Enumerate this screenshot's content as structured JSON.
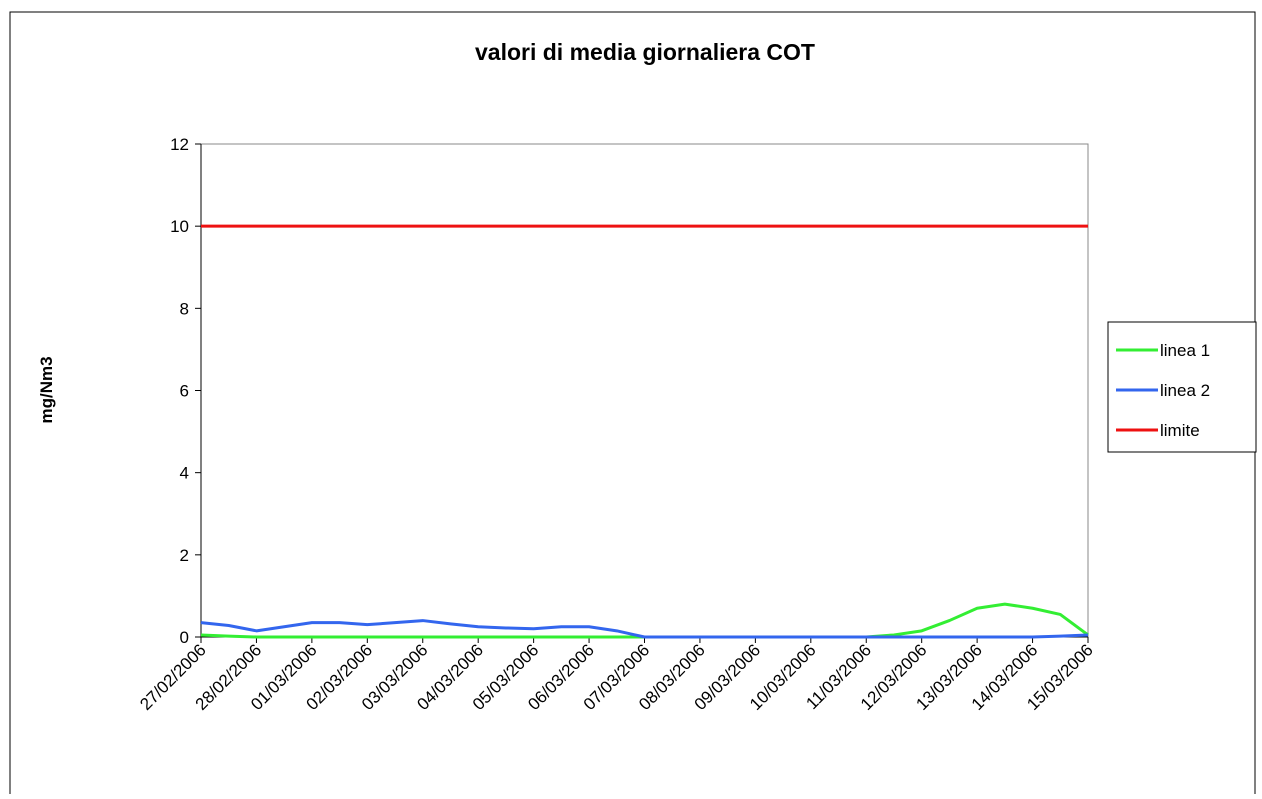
{
  "chart_data": {
    "type": "line",
    "title": "valori di media giornaliera  COT",
    "y_label": "mg/Nm3",
    "categories": [
      "27/02/2006",
      null,
      "28/02/2006",
      null,
      "01/03/2006",
      null,
      "02/03/2006",
      null,
      "03/03/2006",
      null,
      "04/03/2006",
      null,
      "05/03/2006",
      null,
      "06/03/2006",
      null,
      "07/03/2006",
      null,
      "08/03/2006",
      null,
      "09/03/2006",
      null,
      "10/03/2006",
      null,
      "11/03/2006",
      null,
      "12/03/2006",
      null,
      "13/03/2006",
      null,
      "14/03/2006",
      null,
      "15/03/2006"
    ],
    "series": [
      {
        "name": "linea 1",
        "color": "#33ee33",
        "values": [
          0.05,
          0.02,
          0,
          0,
          0,
          0,
          0,
          0,
          0,
          0,
          0,
          0,
          0,
          0,
          0,
          0,
          0,
          0,
          0,
          0,
          0,
          0,
          0,
          0,
          0,
          0.05,
          0.15,
          0.4,
          0.7,
          0.8,
          0.7,
          0.55,
          0.05
        ]
      },
      {
        "name": "linea 2",
        "color": "#3366ee",
        "values": [
          0.35,
          0.28,
          0.15,
          0.25,
          0.35,
          0.35,
          0.3,
          0.35,
          0.4,
          0.32,
          0.25,
          0.22,
          0.2,
          0.25,
          0.25,
          0.15,
          0,
          0,
          0,
          0,
          0,
          0,
          0,
          0,
          0,
          0,
          0,
          0,
          0,
          0,
          0,
          0.02,
          0.05
        ]
      },
      {
        "name": "limite",
        "color": "#ee1111",
        "values": [
          10,
          10,
          10,
          10,
          10,
          10,
          10,
          10,
          10,
          10,
          10,
          10,
          10,
          10,
          10,
          10,
          10,
          10,
          10,
          10,
          10,
          10,
          10,
          10,
          10,
          10,
          10,
          10,
          10,
          10,
          10,
          10,
          10
        ]
      }
    ],
    "ylim": [
      0,
      12
    ],
    "yticks": [
      0,
      2,
      4,
      6,
      8,
      10,
      12
    ],
    "grid": false,
    "legend": "right"
  }
}
